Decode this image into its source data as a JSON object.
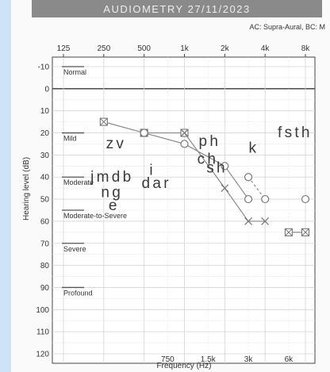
{
  "header": {
    "title": "AUDIOMETRY 27/11/2023",
    "transducer_note": "AC: Supra-Aural, BC: M"
  },
  "chart_data": {
    "type": "line",
    "xlabel": "Frequency (Hz)",
    "ylabel": "Hearing level (dB)",
    "x_top_ticks": [
      125,
      250,
      500,
      1000,
      2000,
      4000,
      8000
    ],
    "x_top_tick_labels": [
      "125",
      "250",
      "500",
      "1k",
      "2k",
      "4k",
      "8k"
    ],
    "x_bottom_ticks": [
      750,
      1500,
      3000,
      6000
    ],
    "x_bottom_tick_labels": [
      "750",
      "1.5k",
      "3k",
      "6k"
    ],
    "x_scale": "log2",
    "xlim": [
      125,
      8000
    ],
    "ylim": [
      -10,
      120
    ],
    "y_inverted": true,
    "y_ticks": [
      -10,
      0,
      10,
      20,
      30,
      40,
      50,
      60,
      70,
      80,
      90,
      100,
      110,
      120
    ],
    "grid": true,
    "categories": [
      {
        "label": "Normal",
        "at": -10
      },
      {
        "label": "Mild",
        "at": 20
      },
      {
        "label": "Moderate",
        "at": 40
      },
      {
        "label": "Moderate-to-Severe",
        "at": 55
      },
      {
        "label": "Severe",
        "at": 70
      },
      {
        "label": "Profound",
        "at": 90
      }
    ],
    "series": [
      {
        "marker": "boxed-x",
        "style": "solid",
        "color": "#888888",
        "x": [
          250,
          500,
          1000
        ],
        "y": [
          15,
          20,
          20
        ]
      },
      {
        "marker": "circle",
        "style": "solid",
        "color": "#888888",
        "x": [
          500,
          1000,
          2000,
          3000
        ],
        "y": [
          20,
          25,
          35,
          50
        ]
      },
      {
        "marker": "x",
        "style": "solid",
        "color": "#888888",
        "x": [
          1000,
          2000,
          3000,
          4000
        ],
        "y": [
          20,
          45,
          60,
          60
        ]
      },
      {
        "marker": "circle",
        "style": "dashed",
        "color": "#888888",
        "x": [
          3000,
          4000
        ],
        "y": [
          40,
          50
        ]
      },
      {
        "marker": "boxed-x",
        "style": "solid",
        "color": "#888888",
        "x": [
          6000,
          8000
        ],
        "y": [
          65,
          65
        ]
      },
      {
        "marker": "circle",
        "style": "solid",
        "color": "#888888",
        "x": [
          8000
        ],
        "y": [
          50
        ]
      }
    ],
    "speech_sounds": [
      {
        "text": "z v",
        "x": 300,
        "y": 27
      },
      {
        "text": "j m d b",
        "x": 280,
        "y": 42
      },
      {
        "text": "n g",
        "x": 280,
        "y": 49
      },
      {
        "text": "e",
        "x": 290,
        "y": 55
      },
      {
        "text": "i",
        "x": 560,
        "y": 39
      },
      {
        "text": "d a r",
        "x": 600,
        "y": 45
      },
      {
        "text": "p h",
        "x": 1500,
        "y": 26
      },
      {
        "text": "c h",
        "x": 1450,
        "y": 34
      },
      {
        "text": "s h",
        "x": 1700,
        "y": 38
      },
      {
        "text": "k",
        "x": 3200,
        "y": 29
      },
      {
        "text": "f s t h",
        "x": 6500,
        "y": 22
      }
    ]
  }
}
